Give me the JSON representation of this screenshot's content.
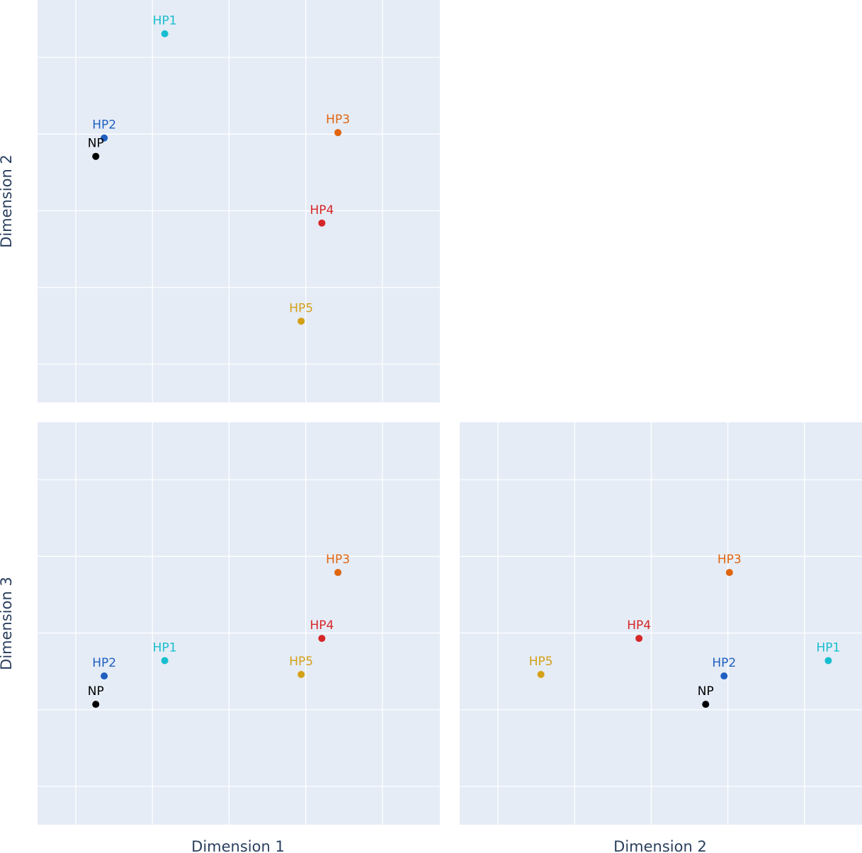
{
  "axis_titles": {
    "dim1": "Dimension 1",
    "dim2": "Dimension 2",
    "dim3": "Dimension 3"
  },
  "colors": {
    "plot_bg": "#e5ecf6",
    "grid": "#ffffff",
    "axis_title": "#2a3f5f"
  },
  "chart_data": [
    {
      "type": "scatter",
      "panel": "top-left",
      "xlabel": "",
      "ylabel": "Dimension 2",
      "x_field": "d1",
      "y_field": "d2",
      "xlim": [
        -0.5,
        4.75
      ],
      "ylim": [
        -0.5,
        4.75
      ],
      "grid": true,
      "tick_labels_shown": false
    },
    {
      "type": "scatter",
      "panel": "bottom-left",
      "xlabel": "Dimension 1",
      "ylabel": "Dimension 3",
      "x_field": "d1",
      "y_field": "d3",
      "xlim": [
        -0.5,
        4.75
      ],
      "ylim": [
        -0.5,
        4.75
      ],
      "grid": true,
      "tick_labels_shown": false
    },
    {
      "type": "scatter",
      "panel": "bottom-right",
      "xlabel": "Dimension 2",
      "ylabel": "",
      "x_field": "d2",
      "y_field": "d3",
      "xlim": [
        -0.5,
        4.75
      ],
      "ylim": [
        -0.5,
        4.75
      ],
      "grid": true,
      "tick_labels_shown": false
    }
  ],
  "points": [
    {
      "name": "HP1",
      "color": "#17becf",
      "d1": 1.16,
      "d2": 4.31,
      "d3": 1.64
    },
    {
      "name": "HP2",
      "color": "#1f5fbf",
      "d1": 0.37,
      "d2": 2.95,
      "d3": 1.44
    },
    {
      "name": "NP",
      "color": "#000000",
      "d1": 0.26,
      "d2": 2.71,
      "d3": 1.07
    },
    {
      "name": "HP3",
      "color": "#e0650d",
      "d1": 3.42,
      "d2": 3.02,
      "d3": 2.79
    },
    {
      "name": "HP4",
      "color": "#d62728",
      "d1": 3.21,
      "d2": 1.84,
      "d3": 1.93
    },
    {
      "name": "HP5",
      "color": "#d4a017",
      "d1": 2.94,
      "d2": 0.56,
      "d3": 1.46
    }
  ]
}
